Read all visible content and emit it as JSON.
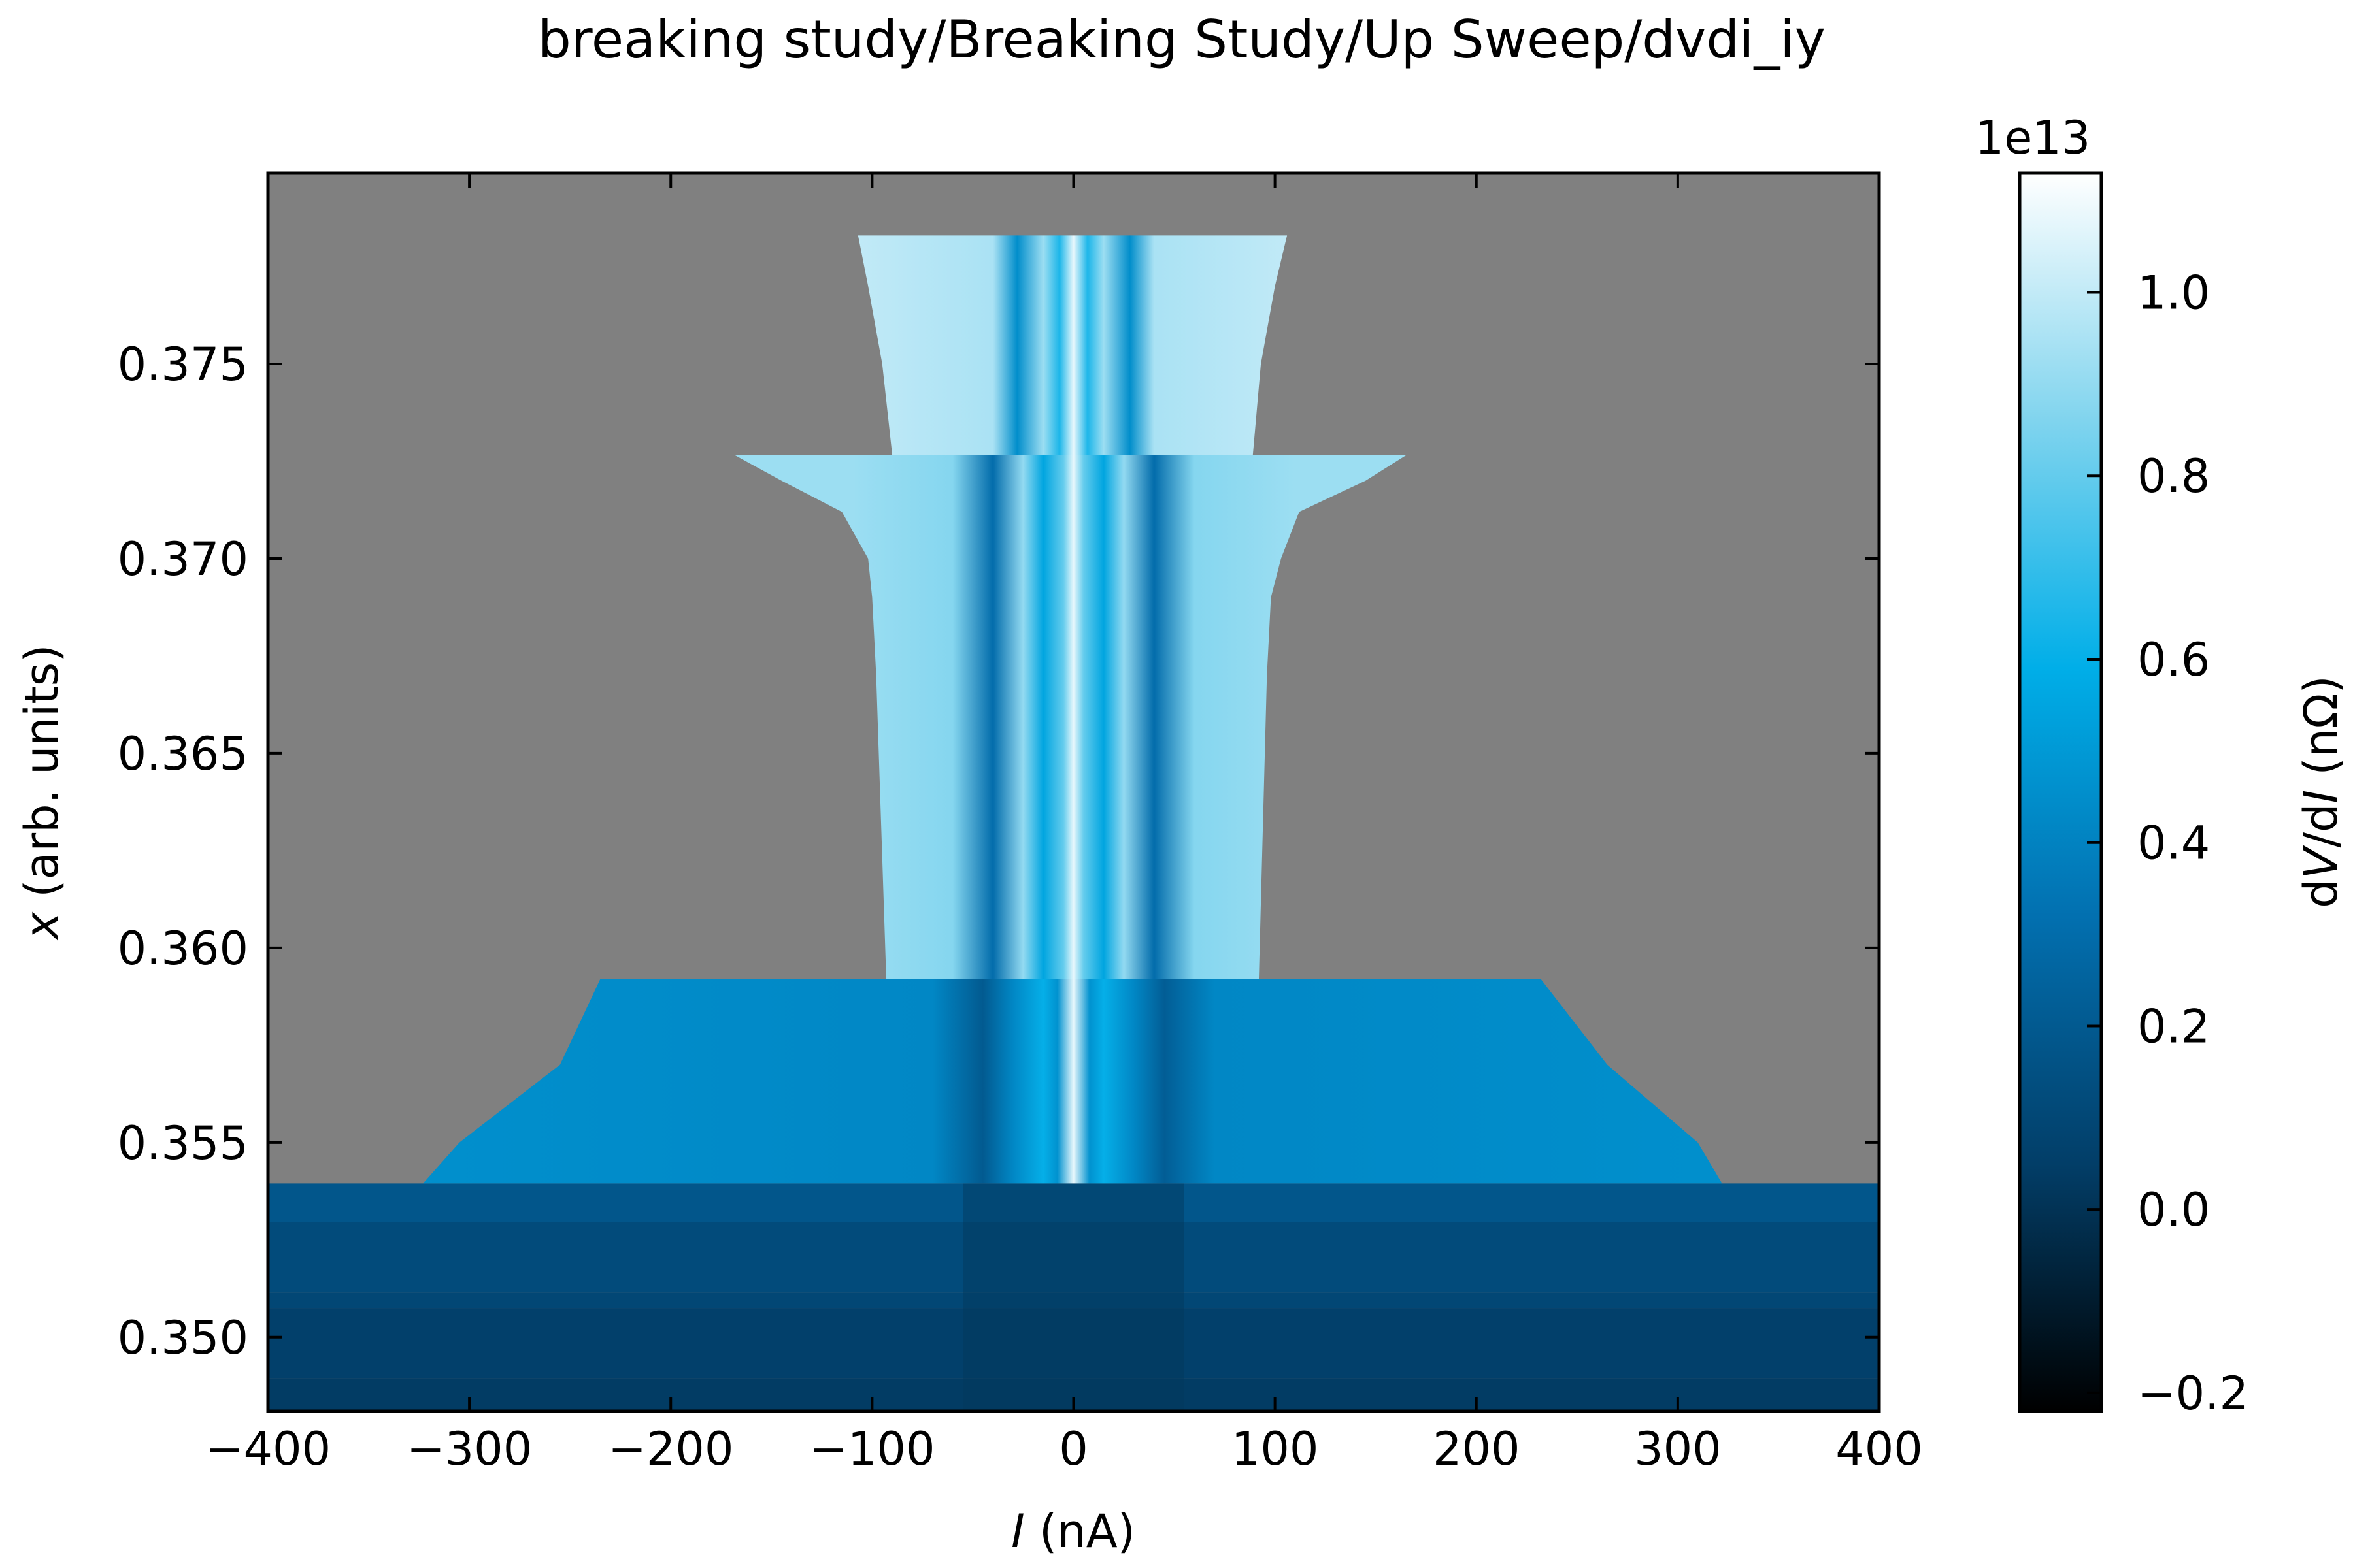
{
  "chart_data": {
    "type": "heatmap",
    "title": "breaking study/Breaking Study/Up Sweep/dvdi_iy",
    "xlabel": "I (nA)",
    "xlabel_var": "I",
    "xlabel_unit": " (nA)",
    "ylabel": "x (arb. units)",
    "ylabel_var": "x",
    "ylabel_unit": " (arb. units)",
    "xlim": [
      -400,
      400
    ],
    "ylim": [
      0.3481,
      0.3799
    ],
    "xticks": [
      -400,
      -300,
      -200,
      -100,
      0,
      100,
      200,
      300,
      400
    ],
    "xtick_labels": [
      "−400",
      "−300",
      "−200",
      "−100",
      "0",
      "100",
      "200",
      "300",
      "400"
    ],
    "yticks": [
      0.35,
      0.355,
      0.36,
      0.365,
      0.37,
      0.375
    ],
    "ytick_labels": [
      "0.350",
      "0.355",
      "0.360",
      "0.365",
      "0.370",
      "0.375"
    ],
    "background_color": "#808080",
    "colorbar": {
      "label": "dV/dI (nΩ)",
      "label_d1": "d",
      "label_v": "V",
      "label_slash": "/d",
      "label_i": "I",
      "label_unit": " (nΩ)",
      "offset_text": "1e13",
      "range": [
        -0.22,
        1.13
      ],
      "ticks": [
        -0.2,
        0.0,
        0.2,
        0.4,
        0.6,
        0.8,
        1.0
      ],
      "tick_labels": [
        "−0.2",
        "0.0",
        "0.2",
        "0.4",
        "0.6",
        "0.8",
        "1.0"
      ],
      "colors": [
        "#000000",
        "#023e68",
        "#0270b0",
        "#00aee8",
        "#80d4ee",
        "#ffffff"
      ]
    },
    "regions": [
      {
        "name": "bottom-band",
        "x_start": 0.3481,
        "x_end": 0.35395,
        "profile": [
          [
            -400,
            0.07
          ],
          [
            400,
            0.07
          ]
        ],
        "edges": [
          [
            0.3481,
            -400,
            400
          ],
          [
            0.35395,
            -400,
            400
          ]
        ],
        "sub_bands": [
          {
            "x0": 0.3481,
            "x1": 0.34895,
            "value": 0.04
          },
          {
            "x0": 0.34895,
            "x1": 0.35075,
            "value": 0.06
          },
          {
            "x0": 0.35075,
            "x1": 0.35115,
            "value": 0.1
          },
          {
            "x0": 0.35115,
            "x1": 0.35295,
            "value": 0.12
          },
          {
            "x0": 0.35295,
            "x1": 0.35395,
            "value": 0.18
          }
        ]
      },
      {
        "name": "band-2",
        "x_start": 0.35395,
        "x_end": 0.3592,
        "profile": [
          [
            -400,
            0.47
          ],
          [
            -70,
            0.42
          ],
          [
            -45,
            0.2
          ],
          [
            -30,
            0.42
          ],
          [
            -15,
            0.6
          ],
          [
            -8,
            0.47
          ],
          [
            0,
            1.08
          ],
          [
            8,
            0.47
          ],
          [
            15,
            0.6
          ],
          [
            30,
            0.42
          ],
          [
            45,
            0.22
          ],
          [
            70,
            0.42
          ],
          [
            400,
            0.47
          ]
        ],
        "edges": [
          [
            0.35395,
            -323,
            322
          ],
          [
            0.355,
            -305,
            310
          ],
          [
            0.357,
            -255,
            265
          ],
          [
            0.3592,
            -235,
            232
          ]
        ]
      },
      {
        "name": "band-3",
        "x_start": 0.3592,
        "x_end": 0.37265,
        "profile": [
          [
            -110,
            0.92
          ],
          [
            -60,
            0.87
          ],
          [
            -40,
            0.3
          ],
          [
            -25,
            0.9
          ],
          [
            -15,
            0.55
          ],
          [
            -5,
            0.8
          ],
          [
            0,
            1.08
          ],
          [
            5,
            0.8
          ],
          [
            15,
            0.55
          ],
          [
            25,
            0.9
          ],
          [
            40,
            0.3
          ],
          [
            60,
            0.87
          ],
          [
            110,
            0.92
          ]
        ],
        "edges": [
          [
            0.3592,
            -93,
            92
          ],
          [
            0.367,
            -98,
            96
          ],
          [
            0.369,
            -100,
            98
          ],
          [
            0.37,
            -102,
            103
          ],
          [
            0.3712,
            -115,
            112
          ],
          [
            0.372,
            -145,
            145
          ],
          [
            0.37265,
            -168,
            165
          ]
        ]
      },
      {
        "name": "top-band",
        "x_start": 0.37265,
        "x_end": 0.3783,
        "profile": [
          [
            -110,
            1.0
          ],
          [
            -40,
            0.95
          ],
          [
            -28,
            0.45
          ],
          [
            -15,
            0.92
          ],
          [
            -7,
            0.65
          ],
          [
            0,
            1.08
          ],
          [
            7,
            0.65
          ],
          [
            15,
            0.92
          ],
          [
            28,
            0.45
          ],
          [
            40,
            0.95
          ],
          [
            110,
            1.0
          ]
        ],
        "edges": [
          [
            0.37265,
            -90,
            89
          ],
          [
            0.375,
            -95,
            93
          ],
          [
            0.377,
            -102,
            100
          ],
          [
            0.3783,
            -107,
            106
          ]
        ]
      }
    ]
  }
}
